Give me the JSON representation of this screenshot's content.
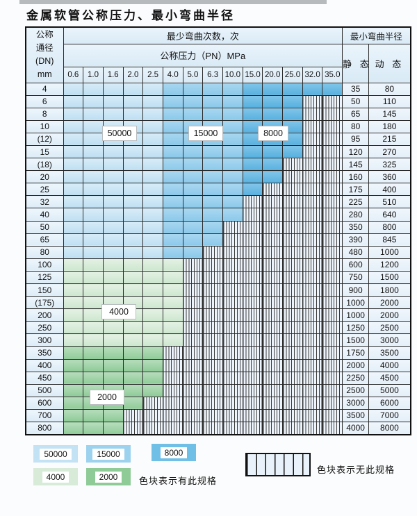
{
  "title": "金属软管公称压力、最小弯曲半径",
  "table": {
    "header": {
      "dn_lines": [
        "公称",
        "通径",
        "(DN)",
        "mm"
      ],
      "bend_cycles": "最少弯曲次数，次",
      "pressure": "公称压力（PN）MPa",
      "pressure_values": [
        "0.6",
        "1.0",
        "1.6",
        "2.0",
        "2.5",
        "4.0",
        "5.0",
        "6.3",
        "10.0",
        "15.0",
        "20.0",
        "25.0",
        "32.0",
        "35.0"
      ],
      "radius": "最小弯曲半径",
      "static": "静 态",
      "dynamic": "动 态"
    },
    "color_zones": {
      "blue_light": {
        "label": "50000",
        "columns": [
          "0.6",
          "1.0",
          "1.6",
          "2.0",
          "2.5"
        ],
        "color": "#c3e2f4"
      },
      "blue_medium": {
        "label": "15000",
        "columns": [
          "4.0",
          "5.0",
          "6.3",
          "10.0"
        ],
        "color": "#9cd2ee"
      },
      "blue_dark": {
        "label": "8000",
        "columns": [
          "15.0",
          "20.0",
          "25.0",
          "32.0",
          "35.0"
        ],
        "color": "#6fbfe6"
      },
      "green_light": {
        "label": "4000",
        "rows": "100-300",
        "color": "#d7ebd8"
      },
      "green_dark": {
        "label": "2000",
        "rows": "350-800",
        "color": "#8fcb97"
      }
    },
    "overlay_labels": [
      "50000",
      "15000",
      "8000",
      "4000",
      "2000"
    ],
    "rows": [
      {
        "dn": "4",
        "family": "blue",
        "colored": 14,
        "static": "35",
        "dynamic": "80"
      },
      {
        "dn": "6",
        "family": "blue",
        "colored": 12,
        "static": "50",
        "dynamic": "110"
      },
      {
        "dn": "8",
        "family": "blue",
        "colored": 12,
        "static": "65",
        "dynamic": "145"
      },
      {
        "dn": "10",
        "family": "blue",
        "colored": 12,
        "static": "80",
        "dynamic": "180"
      },
      {
        "dn": "(12)",
        "family": "blue",
        "colored": 12,
        "static": "95",
        "dynamic": "215"
      },
      {
        "dn": "15",
        "family": "blue",
        "colored": 12,
        "static": "120",
        "dynamic": "270"
      },
      {
        "dn": "(18)",
        "family": "blue",
        "colored": 11,
        "static": "145",
        "dynamic": "325"
      },
      {
        "dn": "20",
        "family": "blue",
        "colored": 11,
        "static": "160",
        "dynamic": "360"
      },
      {
        "dn": "25",
        "family": "blue",
        "colored": 10,
        "static": "175",
        "dynamic": "400"
      },
      {
        "dn": "32",
        "family": "blue",
        "colored": 9,
        "static": "225",
        "dynamic": "510"
      },
      {
        "dn": "40",
        "family": "blue",
        "colored": 9,
        "static": "280",
        "dynamic": "640"
      },
      {
        "dn": "50",
        "family": "blue",
        "colored": 8,
        "static": "350",
        "dynamic": "800"
      },
      {
        "dn": "65",
        "family": "blue",
        "colored": 8,
        "static": "390",
        "dynamic": "845"
      },
      {
        "dn": "80",
        "family": "blue",
        "colored": 7,
        "static": "480",
        "dynamic": "1000"
      },
      {
        "dn": "100",
        "family": "g4",
        "colored": 6,
        "static": "600",
        "dynamic": "1200"
      },
      {
        "dn": "125",
        "family": "g4",
        "colored": 6,
        "static": "750",
        "dynamic": "1500"
      },
      {
        "dn": "150",
        "family": "g4",
        "colored": 6,
        "static": "900",
        "dynamic": "1800"
      },
      {
        "dn": "(175)",
        "family": "g4",
        "colored": 6,
        "static": "1000",
        "dynamic": "2000"
      },
      {
        "dn": "200",
        "family": "g4",
        "colored": 6,
        "static": "1000",
        "dynamic": "2000"
      },
      {
        "dn": "250",
        "family": "g4",
        "colored": 6,
        "static": "1250",
        "dynamic": "2500"
      },
      {
        "dn": "300",
        "family": "g4",
        "colored": 6,
        "static": "1500",
        "dynamic": "3000"
      },
      {
        "dn": "350",
        "family": "g2",
        "colored": 5,
        "static": "1750",
        "dynamic": "3500"
      },
      {
        "dn": "400",
        "family": "g2",
        "colored": 5,
        "static": "2000",
        "dynamic": "4000"
      },
      {
        "dn": "450",
        "family": "g2",
        "colored": 5,
        "static": "2250",
        "dynamic": "4500"
      },
      {
        "dn": "500",
        "family": "g2",
        "colored": 5,
        "static": "2500",
        "dynamic": "5000"
      },
      {
        "dn": "600",
        "family": "g2",
        "colored": 4,
        "static": "3000",
        "dynamic": "6000"
      },
      {
        "dn": "700",
        "family": "g2",
        "colored": 3,
        "static": "3500",
        "dynamic": "7000"
      },
      {
        "dn": "800",
        "family": "g2",
        "colored": 3,
        "static": "4000",
        "dynamic": "8000"
      }
    ]
  },
  "legend": {
    "items": [
      {
        "label": "50000"
      },
      {
        "label": "15000"
      },
      {
        "label": "8000"
      },
      {
        "label": "4000"
      },
      {
        "label": "2000"
      }
    ],
    "has_spec_note": "色块表示有此规格",
    "no_spec_note": "色块表示无此规格"
  }
}
